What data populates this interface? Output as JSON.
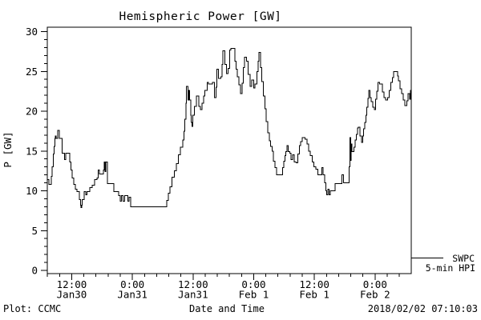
{
  "title": "Hemispheric Power [GW]",
  "legend": {
    "line1": "SWPC",
    "line2": "5-min HPI"
  },
  "footer": {
    "left": "Plot: CCMC",
    "right": "2018/02/02 07:10:03"
  },
  "colors": {
    "line": "#000000",
    "background": "#ffffff"
  },
  "chart_data": {
    "type": "line",
    "style": "step",
    "title": "Hemispheric Power [GW]",
    "xlabel": "Date and Time",
    "ylabel": "P [GW]",
    "ylim": [
      0,
      30
    ],
    "y_major_step": 5,
    "y_minor_step": 1,
    "y_tick_labels": [
      "0",
      "5",
      "10",
      "15",
      "20",
      "25",
      "30"
    ],
    "x_axis": {
      "start": "2018-01-30 07:10",
      "end": "2018-02-02 07:10",
      "span_hours": 72,
      "minor_step_hours": 2.4,
      "tick_hours": [
        4.833,
        16.833,
        28.833,
        40.833,
        52.833,
        64.833
      ],
      "tick_labels": [
        {
          "time": "12:00",
          "date": "Jan30"
        },
        {
          "time": "0:00",
          "date": "Jan31"
        },
        {
          "time": "12:00",
          "date": "Jan31"
        },
        {
          "time": "0:00",
          "date": "Feb 1"
        },
        {
          "time": "12:00",
          "date": "Feb 1"
        },
        {
          "time": "0:00",
          "date": "Feb 2"
        }
      ]
    },
    "series": [
      {
        "name": "SWPC 5-min HPI",
        "units": "GW",
        "points_hours_gw": [
          [
            0,
            11.4
          ],
          [
            0.35,
            10.8
          ],
          [
            0.8,
            11.8
          ],
          [
            0.95,
            13
          ],
          [
            1.15,
            14.6
          ],
          [
            1.35,
            15.6
          ],
          [
            1.5,
            16.6
          ],
          [
            1.62,
            16.9
          ],
          [
            1.78,
            16.6
          ],
          [
            2.06,
            17.6
          ],
          [
            2.38,
            16.6
          ],
          [
            2.95,
            14.7
          ],
          [
            3.4,
            13.9
          ],
          [
            3.62,
            14.7
          ],
          [
            4.44,
            13.6
          ],
          [
            4.67,
            12.6
          ],
          [
            4.9,
            11.6
          ],
          [
            5.23,
            10.8
          ],
          [
            5.55,
            10.2
          ],
          [
            5.87,
            9.9
          ],
          [
            6.34,
            8.9
          ],
          [
            6.55,
            8.2
          ],
          [
            6.66,
            7.9
          ],
          [
            6.78,
            8.2
          ],
          [
            6.93,
            8.9
          ],
          [
            7.3,
            9.9
          ],
          [
            7.6,
            9.5
          ],
          [
            7.85,
            9.9
          ],
          [
            8.4,
            10.4
          ],
          [
            8.9,
            10.7
          ],
          [
            9.35,
            11.4
          ],
          [
            9.8,
            11.6
          ],
          [
            10.1,
            12.6
          ],
          [
            10.3,
            12.1
          ],
          [
            11.1,
            12.6
          ],
          [
            11.25,
            13.6
          ],
          [
            11.45,
            12.4
          ],
          [
            11.6,
            13.6
          ],
          [
            11.9,
            10.9
          ],
          [
            13.2,
            9.9
          ],
          [
            14.1,
            9.4
          ],
          [
            14.4,
            8.7
          ],
          [
            14.7,
            9.4
          ],
          [
            15,
            8.7
          ],
          [
            15.3,
            9.4
          ],
          [
            15.9,
            8.7
          ],
          [
            16.2,
            9.2
          ],
          [
            16.5,
            8
          ],
          [
            23.65,
            8.8
          ],
          [
            23.95,
            9.7
          ],
          [
            24.3,
            10.5
          ],
          [
            24.7,
            11.7
          ],
          [
            25.1,
            12.5
          ],
          [
            25.5,
            13.4
          ],
          [
            25.9,
            14.5
          ],
          [
            26.35,
            15.5
          ],
          [
            26.8,
            16.4
          ],
          [
            27,
            17.5
          ],
          [
            27.2,
            19
          ],
          [
            27.4,
            21
          ],
          [
            27.55,
            23.1
          ],
          [
            27.8,
            21.4
          ],
          [
            28,
            22.6
          ],
          [
            28.15,
            21.4
          ],
          [
            28.35,
            19.5
          ],
          [
            28.5,
            18.6
          ],
          [
            28.65,
            18.1
          ],
          [
            28.8,
            19.5
          ],
          [
            29.1,
            20.6
          ],
          [
            29.5,
            21.9
          ],
          [
            30,
            20.6
          ],
          [
            30.3,
            20.2
          ],
          [
            30.6,
            21
          ],
          [
            30.9,
            21.9
          ],
          [
            31.2,
            22.6
          ],
          [
            31.6,
            23.6
          ],
          [
            31.9,
            23.4
          ],
          [
            32.7,
            23.6
          ],
          [
            33.1,
            21.7
          ],
          [
            33.35,
            23
          ],
          [
            33.55,
            25.3
          ],
          [
            33.85,
            24.1
          ],
          [
            34.3,
            24.3
          ],
          [
            34.55,
            25.9
          ],
          [
            34.75,
            27.6
          ],
          [
            35.1,
            25.9
          ],
          [
            35.45,
            24.7
          ],
          [
            35.75,
            25.4
          ],
          [
            36.05,
            27.7
          ],
          [
            36.35,
            27.9
          ],
          [
            37.1,
            26.3
          ],
          [
            37.35,
            25.3
          ],
          [
            37.6,
            24.3
          ],
          [
            37.9,
            23.3
          ],
          [
            38.2,
            22.2
          ],
          [
            38.55,
            23.5
          ],
          [
            38.8,
            25.5
          ],
          [
            39,
            26.8
          ],
          [
            39.4,
            26.3
          ],
          [
            39.7,
            24.6
          ],
          [
            40.1,
            23.1
          ],
          [
            40.45,
            23.9
          ],
          [
            40.8,
            22.9
          ],
          [
            41.1,
            23.4
          ],
          [
            41.45,
            25
          ],
          [
            41.7,
            26.3
          ],
          [
            41.9,
            27.4
          ],
          [
            42.2,
            25.5
          ],
          [
            42.45,
            23.7
          ],
          [
            42.75,
            21.9
          ],
          [
            43.05,
            20.3
          ],
          [
            43.3,
            18.7
          ],
          [
            43.6,
            17.3
          ],
          [
            43.9,
            16.3
          ],
          [
            44.2,
            15.6
          ],
          [
            44.45,
            15
          ],
          [
            44.75,
            13.7
          ],
          [
            45.05,
            12.9
          ],
          [
            45.35,
            12
          ],
          [
            46.55,
            12.9
          ],
          [
            46.8,
            13.7
          ],
          [
            47,
            14.4
          ],
          [
            47.15,
            14.9
          ],
          [
            47.4,
            15.7
          ],
          [
            47.65,
            14.9
          ],
          [
            47.95,
            14.7
          ],
          [
            48.25,
            13.9
          ],
          [
            48.55,
            14.5
          ],
          [
            48.85,
            13.6
          ],
          [
            49.25,
            13.5
          ],
          [
            49.55,
            14.6
          ],
          [
            49.85,
            15.7
          ],
          [
            50.15,
            16.2
          ],
          [
            50.4,
            16.7
          ],
          [
            51,
            16.5
          ],
          [
            51.35,
            15.9
          ],
          [
            51.7,
            15
          ],
          [
            52.05,
            14.4
          ],
          [
            52.4,
            13.6
          ],
          [
            52.75,
            13
          ],
          [
            53.1,
            12.7
          ],
          [
            53.5,
            12
          ],
          [
            54.3,
            12.9
          ],
          [
            54.55,
            12
          ],
          [
            54.85,
            11
          ],
          [
            55.1,
            10
          ],
          [
            55.3,
            9.5
          ],
          [
            55.5,
            10.2
          ],
          [
            55.72,
            9.5
          ],
          [
            55.95,
            10
          ],
          [
            56.9,
            10.9
          ],
          [
            58.3,
            12
          ],
          [
            58.6,
            11
          ],
          [
            59.7,
            13
          ],
          [
            59.85,
            16.7
          ],
          [
            60,
            13.8
          ],
          [
            60.12,
            15.9
          ],
          [
            60.3,
            14.9
          ],
          [
            60.7,
            15.5
          ],
          [
            60.9,
            16.4
          ],
          [
            61.1,
            17.1
          ],
          [
            61.35,
            17.9
          ],
          [
            61.55,
            18
          ],
          [
            61.85,
            16.9
          ],
          [
            62.15,
            16.1
          ],
          [
            62.4,
            16.9
          ],
          [
            62.6,
            17.8
          ],
          [
            62.8,
            18.6
          ],
          [
            63,
            19.5
          ],
          [
            63.2,
            20.5
          ],
          [
            63.4,
            21.6
          ],
          [
            63.6,
            22.6
          ],
          [
            63.85,
            21.7
          ],
          [
            64.1,
            21.2
          ],
          [
            64.4,
            20.5
          ],
          [
            64.7,
            20.2
          ],
          [
            64.95,
            21.5
          ],
          [
            65.2,
            22.5
          ],
          [
            65.45,
            23.6
          ],
          [
            65.75,
            23.4
          ],
          [
            66.3,
            22.4
          ],
          [
            66.6,
            21.7
          ],
          [
            66.95,
            21.4
          ],
          [
            67.35,
            21.7
          ],
          [
            67.65,
            22.6
          ],
          [
            67.95,
            23.6
          ],
          [
            68.25,
            24.2
          ],
          [
            68.55,
            25
          ],
          [
            69.3,
            24.4
          ],
          [
            69.5,
            23.8
          ],
          [
            69.8,
            22.8
          ],
          [
            70.1,
            22.2
          ],
          [
            70.45,
            21.4
          ],
          [
            70.75,
            20.7
          ],
          [
            71.1,
            21.3
          ],
          [
            71.35,
            22.2
          ],
          [
            71.7,
            21.5
          ],
          [
            71.88,
            22.6
          ],
          [
            72,
            22.6
          ]
        ]
      }
    ]
  }
}
